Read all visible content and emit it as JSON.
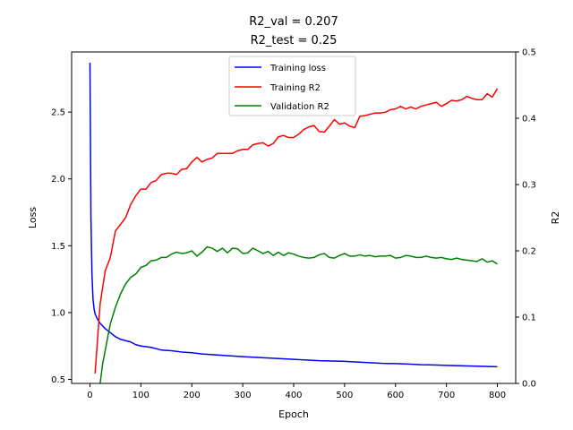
{
  "chart_data": {
    "type": "line",
    "title_lines": [
      "R2_val = 0.207",
      "R2_test = 0.25"
    ],
    "xlabel": "Epoch",
    "ylabel_left": "Loss",
    "ylabel_right": "R2",
    "xlim": [
      -36,
      836
    ],
    "ylim_left": [
      0.47,
      2.95
    ],
    "ylim_right": [
      0,
      0.5
    ],
    "x_ticks": [
      0,
      100,
      200,
      300,
      400,
      500,
      600,
      700,
      800
    ],
    "y_left_ticks": [
      "0.5",
      "1.0",
      "1.5",
      "2.0",
      "2.5"
    ],
    "y_right_ticks": [
      "0.0",
      "0.1",
      "0.2",
      "0.3",
      "0.4",
      "0.5"
    ],
    "grid": false,
    "legend_position": "upper center",
    "series": [
      {
        "name": "Training loss",
        "axis": "left",
        "color": "#0000ff",
        "x": [
          0,
          2,
          4,
          6,
          8,
          10,
          15,
          20,
          30,
          40,
          50,
          60,
          70,
          80,
          90,
          100,
          120,
          140,
          160,
          180,
          200,
          220,
          240,
          260,
          280,
          300,
          325,
          350,
          375,
          400,
          425,
          450,
          475,
          500,
          525,
          550,
          575,
          600,
          625,
          650,
          675,
          700,
          725,
          750,
          775,
          800
        ],
        "y": [
          2.87,
          1.7,
          1.28,
          1.1,
          1.03,
          0.99,
          0.95,
          0.92,
          0.88,
          0.85,
          0.82,
          0.8,
          0.79,
          0.78,
          0.76,
          0.75,
          0.74,
          0.72,
          0.715,
          0.705,
          0.7,
          0.69,
          0.685,
          0.68,
          0.675,
          0.67,
          0.665,
          0.66,
          0.655,
          0.65,
          0.645,
          0.64,
          0.638,
          0.635,
          0.63,
          0.625,
          0.62,
          0.618,
          0.615,
          0.61,
          0.608,
          0.605,
          0.602,
          0.6,
          0.597,
          0.595
        ]
      },
      {
        "name": "Training R2",
        "axis": "right",
        "color": "#ff0000",
        "x": [
          10,
          20,
          30,
          40,
          50,
          60,
          70,
          80,
          90,
          100,
          110,
          120,
          130,
          140,
          150,
          160,
          170,
          180,
          190,
          200,
          210,
          220,
          230,
          240,
          250,
          260,
          270,
          280,
          290,
          300,
          310,
          320,
          330,
          340,
          350,
          360,
          370,
          380,
          390,
          400,
          410,
          420,
          430,
          440,
          450,
          460,
          470,
          480,
          490,
          500,
          510,
          520,
          530,
          540,
          550,
          560,
          570,
          580,
          590,
          600,
          610,
          620,
          630,
          640,
          650,
          660,
          670,
          680,
          690,
          700,
          710,
          720,
          730,
          740,
          750,
          760,
          770,
          780,
          790,
          800
        ],
        "y": [
          0.015,
          0.12,
          0.17,
          0.19,
          0.23,
          0.24,
          0.25,
          0.27,
          0.283,
          0.293,
          0.293,
          0.303,
          0.306,
          0.315,
          0.317,
          0.317,
          0.315,
          0.323,
          0.324,
          0.334,
          0.341,
          0.334,
          0.338,
          0.34,
          0.347,
          0.347,
          0.347,
          0.347,
          0.351,
          0.353,
          0.353,
          0.36,
          0.362,
          0.363,
          0.358,
          0.362,
          0.372,
          0.374,
          0.371,
          0.371,
          0.376,
          0.383,
          0.387,
          0.389,
          0.38,
          0.379,
          0.388,
          0.398,
          0.391,
          0.393,
          0.388,
          0.386,
          0.403,
          0.404,
          0.406,
          0.408,
          0.408,
          0.409,
          0.413,
          0.414,
          0.418,
          0.414,
          0.417,
          0.414,
          0.418,
          0.42,
          0.422,
          0.424,
          0.418,
          0.422,
          0.427,
          0.426,
          0.428,
          0.433,
          0.43,
          0.428,
          0.428,
          0.437,
          0.432,
          0.445
        ]
      },
      {
        "name": "Validation R2",
        "axis": "right",
        "color": "#008000",
        "x": [
          20,
          25,
          30,
          35,
          40,
          50,
          60,
          70,
          80,
          90,
          100,
          110,
          120,
          130,
          140,
          150,
          160,
          170,
          180,
          190,
          200,
          210,
          220,
          230,
          240,
          250,
          260,
          270,
          280,
          290,
          300,
          310,
          320,
          330,
          340,
          350,
          360,
          370,
          380,
          390,
          400,
          410,
          420,
          430,
          440,
          450,
          460,
          470,
          480,
          490,
          500,
          510,
          520,
          530,
          540,
          550,
          560,
          570,
          580,
          590,
          600,
          610,
          620,
          630,
          640,
          650,
          660,
          670,
          680,
          690,
          700,
          710,
          720,
          730,
          740,
          750,
          760,
          770,
          780,
          790,
          800
        ],
        "y": [
          0.0,
          0.03,
          0.05,
          0.07,
          0.09,
          0.115,
          0.135,
          0.15,
          0.16,
          0.165,
          0.175,
          0.178,
          0.185,
          0.186,
          0.19,
          0.19,
          0.195,
          0.198,
          0.196,
          0.197,
          0.2,
          0.192,
          0.198,
          0.206,
          0.204,
          0.199,
          0.204,
          0.197,
          0.204,
          0.203,
          0.196,
          0.197,
          0.204,
          0.2,
          0.196,
          0.199,
          0.193,
          0.198,
          0.193,
          0.197,
          0.195,
          0.192,
          0.19,
          0.189,
          0.19,
          0.194,
          0.196,
          0.19,
          0.189,
          0.193,
          0.196,
          0.192,
          0.192,
          0.194,
          0.192,
          0.193,
          0.191,
          0.192,
          0.192,
          0.193,
          0.189,
          0.19,
          0.193,
          0.192,
          0.19,
          0.19,
          0.192,
          0.19,
          0.189,
          0.19,
          0.188,
          0.187,
          0.189,
          0.187,
          0.186,
          0.185,
          0.184,
          0.188,
          0.183,
          0.185,
          0.18
        ]
      }
    ]
  }
}
